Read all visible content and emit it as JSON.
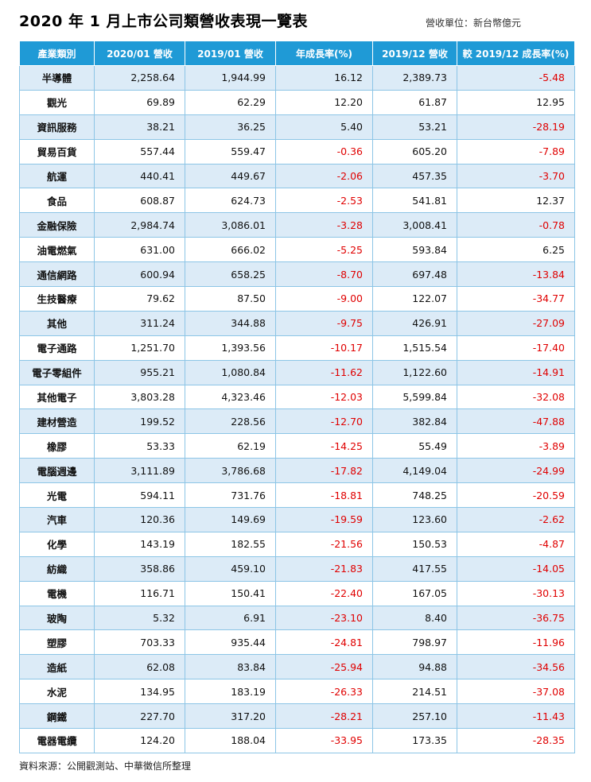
{
  "title": "2020 年 1 月上市公司類營收表現一覽表",
  "unit": "營收單位：新台幣億元",
  "source": "資料來源：公開觀測站、中華徵信所整理",
  "columns": [
    "產業類別",
    "2020/01 營收",
    "2019/01 營收",
    "年成長率(%)",
    "2019/12 營收",
    "較 2019/12 成長率(%)"
  ],
  "colors": {
    "header_bg": "#1f9ad6",
    "row_alt": "#dcebf7",
    "negative": "#e00000"
  },
  "rows": [
    [
      "半導體",
      "2,258.64",
      "1,944.99",
      "16.12",
      "2,389.73",
      "-5.48"
    ],
    [
      "觀光",
      "69.89",
      "62.29",
      "12.20",
      "61.87",
      "12.95"
    ],
    [
      "資訊服務",
      "38.21",
      "36.25",
      "5.40",
      "53.21",
      "-28.19"
    ],
    [
      "貿易百貨",
      "557.44",
      "559.47",
      "-0.36",
      "605.20",
      "-7.89"
    ],
    [
      "航運",
      "440.41",
      "449.67",
      "-2.06",
      "457.35",
      "-3.70"
    ],
    [
      "食品",
      "608.87",
      "624.73",
      "-2.53",
      "541.81",
      "12.37"
    ],
    [
      "金融保險",
      "2,984.74",
      "3,086.01",
      "-3.28",
      "3,008.41",
      "-0.78"
    ],
    [
      "油電燃氣",
      "631.00",
      "666.02",
      "-5.25",
      "593.84",
      "6.25"
    ],
    [
      "通信網路",
      "600.94",
      "658.25",
      "-8.70",
      "697.48",
      "-13.84"
    ],
    [
      "生技醫療",
      "79.62",
      "87.50",
      "-9.00",
      "122.07",
      "-34.77"
    ],
    [
      "其他",
      "311.24",
      "344.88",
      "-9.75",
      "426.91",
      "-27.09"
    ],
    [
      "電子通路",
      "1,251.70",
      "1,393.56",
      "-10.17",
      "1,515.54",
      "-17.40"
    ],
    [
      "電子零組件",
      "955.21",
      "1,080.84",
      "-11.62",
      "1,122.60",
      "-14.91"
    ],
    [
      "其他電子",
      "3,803.28",
      "4,323.46",
      "-12.03",
      "5,599.84",
      "-32.08"
    ],
    [
      "建材營造",
      "199.52",
      "228.56",
      "-12.70",
      "382.84",
      "-47.88"
    ],
    [
      "橡膠",
      "53.33",
      "62.19",
      "-14.25",
      "55.49",
      "-3.89"
    ],
    [
      "電腦週邊",
      "3,111.89",
      "3,786.68",
      "-17.82",
      "4,149.04",
      "-24.99"
    ],
    [
      "光電",
      "594.11",
      "731.76",
      "-18.81",
      "748.25",
      "-20.59"
    ],
    [
      "汽車",
      "120.36",
      "149.69",
      "-19.59",
      "123.60",
      "-2.62"
    ],
    [
      "化學",
      "143.19",
      "182.55",
      "-21.56",
      "150.53",
      "-4.87"
    ],
    [
      "紡織",
      "358.86",
      "459.10",
      "-21.83",
      "417.55",
      "-14.05"
    ],
    [
      "電機",
      "116.71",
      "150.41",
      "-22.40",
      "167.05",
      "-30.13"
    ],
    [
      "玻陶",
      "5.32",
      "6.91",
      "-23.10",
      "8.40",
      "-36.75"
    ],
    [
      "塑膠",
      "703.33",
      "935.44",
      "-24.81",
      "798.97",
      "-11.96"
    ],
    [
      "造紙",
      "62.08",
      "83.84",
      "-25.94",
      "94.88",
      "-34.56"
    ],
    [
      "水泥",
      "134.95",
      "183.19",
      "-26.33",
      "214.51",
      "-37.08"
    ],
    [
      "鋼鐵",
      "227.70",
      "317.20",
      "-28.21",
      "257.10",
      "-11.43"
    ],
    [
      "電器電纜",
      "124.20",
      "188.04",
      "-33.95",
      "173.35",
      "-28.35"
    ]
  ]
}
